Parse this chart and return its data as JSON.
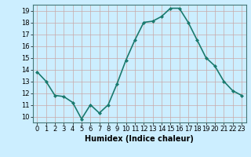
{
  "x": [
    0,
    1,
    2,
    3,
    4,
    5,
    6,
    7,
    8,
    9,
    10,
    11,
    12,
    13,
    14,
    15,
    16,
    17,
    18,
    19,
    20,
    21,
    22,
    23
  ],
  "y": [
    13.8,
    13.0,
    11.8,
    11.7,
    11.2,
    9.8,
    11.0,
    10.3,
    11.0,
    12.8,
    14.8,
    16.5,
    18.0,
    18.1,
    18.5,
    19.2,
    19.2,
    18.0,
    16.5,
    15.0,
    14.3,
    13.0,
    12.2,
    11.8
  ],
  "line_color": "#1a7a6e",
  "marker": "D",
  "marker_size": 2,
  "bg_color": "#cceeff",
  "grid_color_major": "#c8a8a8",
  "grid_color_minor": "#c8a8a8",
  "xlim": [
    -0.5,
    23.5
  ],
  "ylim": [
    9.5,
    19.5
  ],
  "yticks": [
    10,
    11,
    12,
    13,
    14,
    15,
    16,
    17,
    18,
    19
  ],
  "xticks": [
    0,
    1,
    2,
    3,
    4,
    5,
    6,
    7,
    8,
    9,
    10,
    11,
    12,
    13,
    14,
    15,
    16,
    17,
    18,
    19,
    20,
    21,
    22,
    23
  ],
  "xlabel": "Humidex (Indice chaleur)",
  "xlabel_fontsize": 7,
  "tick_fontsize": 6,
  "line_width": 1.2
}
